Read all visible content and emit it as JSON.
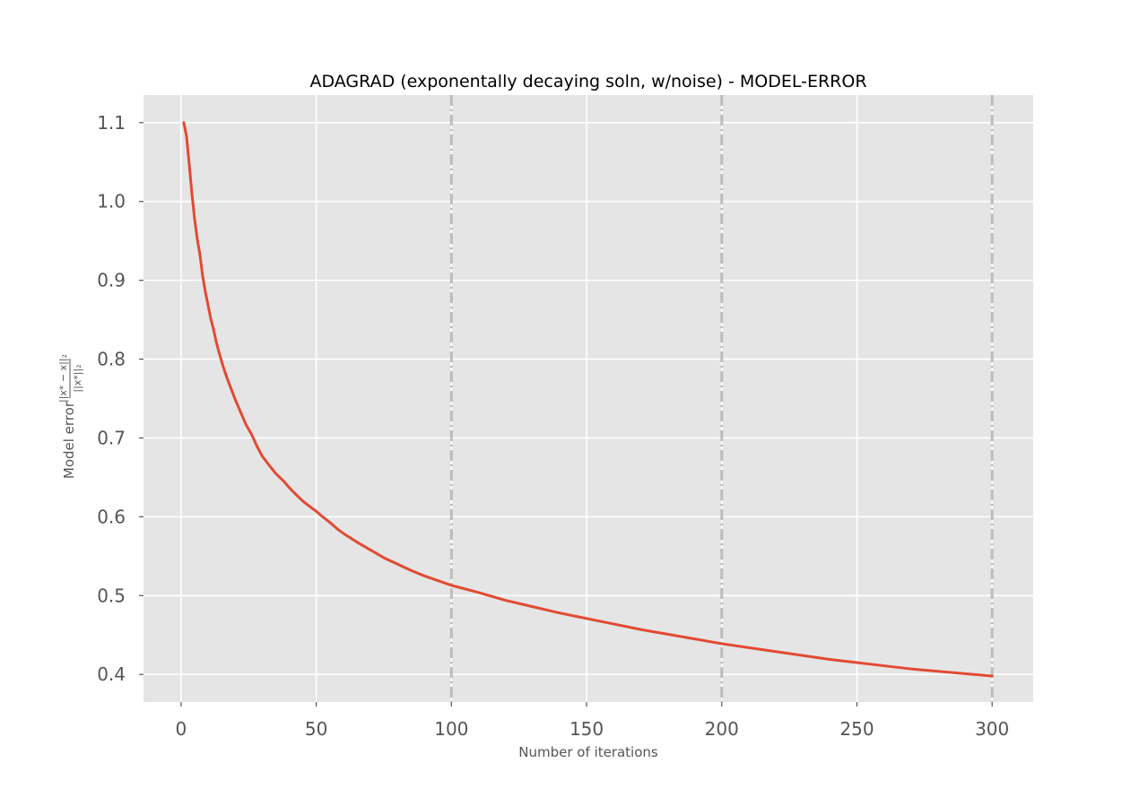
{
  "chart_data": {
    "type": "line",
    "title": "ADAGRAD (exponentally decaying soln, w/noise) - MODEL-ERROR",
    "xlabel": "Number of iterations",
    "ylabel_text": "Model error ",
    "ylabel_numerator": "||x* − x||₂",
    "ylabel_denominator": "||x*||₂",
    "xlim": [
      -13.9,
      315.2
    ],
    "ylim": [
      0.365,
      1.135
    ],
    "xticks": [
      0,
      50,
      100,
      150,
      200,
      250,
      300
    ],
    "yticks": [
      0.4,
      0.5,
      0.6,
      0.7,
      0.8,
      0.9,
      1.0,
      1.1
    ],
    "grid": true,
    "legend": "none",
    "vlines": [
      100,
      200,
      300
    ],
    "series": [
      {
        "color": "#e24a33",
        "x": [
          1,
          2,
          3,
          4,
          5,
          6,
          7,
          8,
          9,
          10,
          11,
          12,
          13,
          14,
          15,
          16,
          17,
          18,
          19,
          20,
          22,
          24,
          26,
          28,
          30,
          32,
          35,
          38,
          40,
          42,
          45,
          48,
          50,
          52,
          55,
          58,
          60,
          65,
          70,
          75,
          80,
          85,
          90,
          95,
          100,
          110,
          120,
          130,
          140,
          150,
          160,
          170,
          180,
          190,
          200,
          210,
          220,
          230,
          240,
          250,
          260,
          270,
          280,
          290,
          300
        ],
        "y": [
          1.1,
          1.083,
          1.048,
          1.01,
          0.978,
          0.952,
          0.932,
          0.905,
          0.885,
          0.868,
          0.851,
          0.838,
          0.822,
          0.809,
          0.797,
          0.786,
          0.776,
          0.767,
          0.758,
          0.749,
          0.733,
          0.717,
          0.705,
          0.69,
          0.677,
          0.668,
          0.655,
          0.645,
          0.637,
          0.63,
          0.62,
          0.612,
          0.607,
          0.601,
          0.593,
          0.584,
          0.579,
          0.568,
          0.558,
          0.548,
          0.54,
          0.532,
          0.525,
          0.519,
          0.513,
          0.504,
          0.494,
          0.486,
          0.478,
          0.471,
          0.464,
          0.457,
          0.451,
          0.445,
          0.439,
          0.434,
          0.429,
          0.424,
          0.419,
          0.415,
          0.411,
          0.407,
          0.404,
          0.401,
          0.398
        ]
      }
    ]
  }
}
